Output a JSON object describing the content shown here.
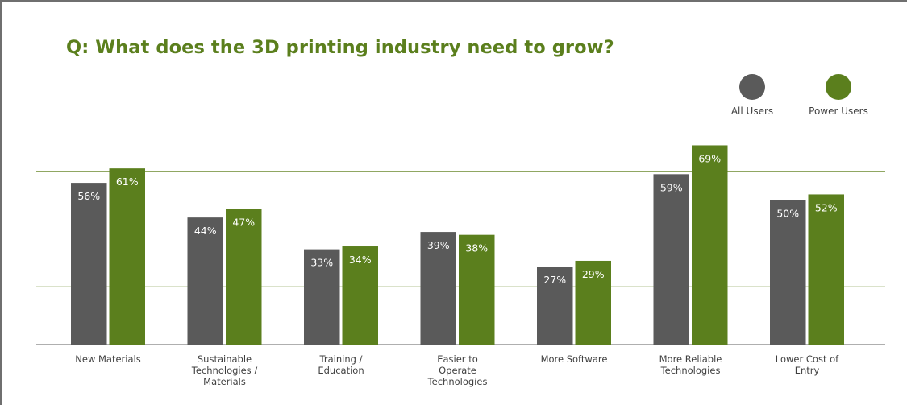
{
  "title": "Q: What does the 3D printing industry need to grow?",
  "colors": {
    "all_users": "#5a5a5a",
    "power_users": "#5b7f1d",
    "gridline": "#6b8a2f",
    "title": "#5b7f1d"
  },
  "legend": [
    {
      "label": "All Users",
      "color": "#5a5a5a"
    },
    {
      "label": "Power Users",
      "color": "#5b7f1d"
    }
  ],
  "chart_data": {
    "type": "bar",
    "title": "Q: What does the 3D printing industry need to grow?",
    "categories": [
      [
        "New Materials"
      ],
      [
        "Sustainable",
        "Technologies /",
        "Materials"
      ],
      [
        "Training /",
        "Education"
      ],
      [
        "Easier to",
        "Operate",
        "Technologies"
      ],
      [
        "More Software"
      ],
      [
        "More Reliable",
        "Technologies"
      ],
      [
        "Lower Cost of",
        "Entry"
      ]
    ],
    "series": [
      {
        "name": "All Users",
        "values": [
          56,
          44,
          33,
          39,
          27,
          59,
          50
        ],
        "labels": [
          "56%",
          "44%",
          "33%",
          "39%",
          "27%",
          "59%",
          "50%"
        ]
      },
      {
        "name": "Power Users",
        "values": [
          61,
          47,
          34,
          38,
          29,
          69,
          52
        ],
        "labels": [
          "61%",
          "47%",
          "34%",
          "38%",
          "29%",
          "69%",
          "52%"
        ]
      }
    ],
    "ylim": [
      0,
      80
    ],
    "gridlines": [
      20,
      40,
      60
    ],
    "legend_position": "top-right",
    "xlabel": "",
    "ylabel": ""
  }
}
